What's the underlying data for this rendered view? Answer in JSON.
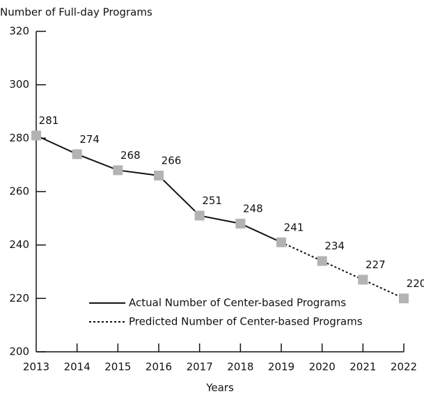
{
  "chart_data": {
    "type": "line",
    "y_label": "Number of Full-day Programs",
    "x_label": "Years",
    "categories": [
      "2013",
      "2014",
      "2015",
      "2016",
      "2017",
      "2018",
      "2019",
      "2020",
      "2021",
      "2022"
    ],
    "series": [
      {
        "name": "Actual Number of Center-based Programs",
        "color": "#111111",
        "line_style": "solid",
        "values": [
          281,
          274,
          268,
          266,
          251,
          248,
          241,
          null,
          null,
          null
        ]
      },
      {
        "name": "Predicted Number of Center-based Programs",
        "color": "#111111",
        "line_style": "dashed",
        "values": [
          null,
          null,
          null,
          null,
          null,
          null,
          241,
          234,
          227,
          220
        ]
      }
    ],
    "marker_color": "#b3b3b3",
    "ylim": [
      200,
      320
    ],
    "yticks": [
      200,
      220,
      240,
      260,
      280,
      300,
      320
    ],
    "legend": "lower right"
  }
}
